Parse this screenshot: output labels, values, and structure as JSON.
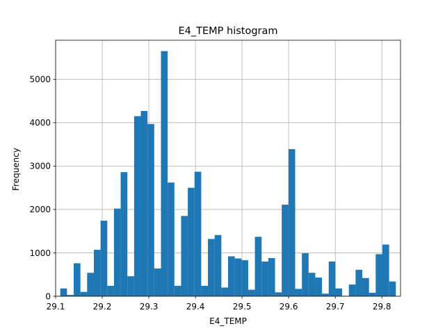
{
  "chart_data": {
    "type": "bar",
    "title": "E4_TEMP histogram",
    "xlabel": "E4_TEMP",
    "ylabel": "Frequency",
    "xlim": [
      29.1,
      29.84
    ],
    "ylim": [
      0,
      5900
    ],
    "bins": {
      "start": 29.11,
      "end": 29.83,
      "count": 50
    },
    "values": [
      180,
      30,
      760,
      100,
      540,
      1070,
      1740,
      240,
      2020,
      2860,
      460,
      4150,
      4270,
      3970,
      640,
      5650,
      2620,
      240,
      1850,
      2500,
      2870,
      240,
      1320,
      1410,
      200,
      920,
      870,
      830,
      150,
      1370,
      800,
      880,
      90,
      2110,
      3390,
      170,
      990,
      540,
      430,
      60,
      800,
      180,
      10,
      270,
      610,
      420,
      80,
      970,
      1190,
      340
    ],
    "x_ticks": [
      "29.1",
      "29.2",
      "29.3",
      "29.4",
      "29.5",
      "29.6",
      "29.7",
      "29.8"
    ],
    "x_tick_values": [
      29.1,
      29.2,
      29.3,
      29.4,
      29.5,
      29.6,
      29.7,
      29.8
    ],
    "y_ticks": [
      "0",
      "1000",
      "2000",
      "3000",
      "4000",
      "5000"
    ],
    "y_tick_values": [
      0,
      1000,
      2000,
      3000,
      4000,
      5000
    ],
    "grid": true,
    "bar_color": "#1f77b4"
  }
}
